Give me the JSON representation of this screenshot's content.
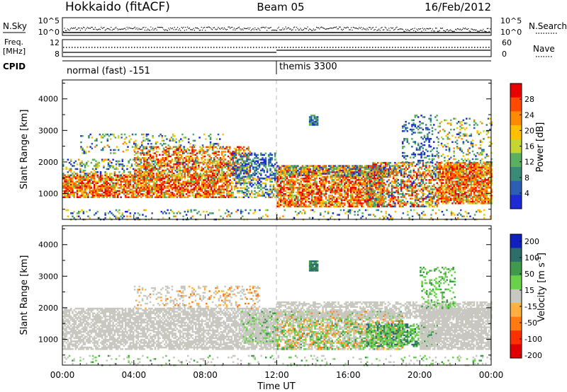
{
  "header": {
    "title": "Hokkaido (fitACF)",
    "beam": "Beam 05",
    "date": "16/Feb/2012"
  },
  "top_panel": {
    "nsky_label": "N.Sky",
    "nsearch_label": "N.Search",
    "nsky_ticks": [
      "10^5",
      "10^0"
    ],
    "nsky_right_ticks": [
      "10^5",
      "10^0"
    ],
    "freq_label_1": "Freq.",
    "freq_label_2": "[MHz]",
    "freq_ticks": [
      "12",
      "8"
    ],
    "nave_label": "Nave",
    "nave_ticks": [
      "60",
      "0"
    ],
    "cpid_label": "CPID",
    "cpid_segments": [
      "normal (fast) -151",
      "themis 3300"
    ]
  },
  "chart_data": [
    {
      "type": "heatmap",
      "title": "",
      "xlabel": "",
      "ylabel": "Slant Range [km]",
      "colorbar_label": "Power [dB]",
      "x_range": [
        "00:00",
        "24:00"
      ],
      "ylim": [
        180,
        4600
      ],
      "yticks": [
        1000,
        2000,
        3000,
        4000
      ],
      "colorbar_ticks": [
        4,
        8,
        12,
        16,
        20,
        24,
        28
      ],
      "colorbar_range": [
        0,
        32
      ],
      "colorscale": [
        "#1d2bd6",
        "#2c5fb2",
        "#3a8a78",
        "#58b060",
        "#c7d530",
        "#ffc000",
        "#ff8a00",
        "#ff4a00",
        "#e80000"
      ]
    },
    {
      "type": "heatmap",
      "title": "",
      "xlabel": "Time UT",
      "ylabel": "Slant Range [km]",
      "colorbar_label": "Velocity [m s^-1]",
      "x_range": [
        "00:00",
        "24:00"
      ],
      "xticks": [
        "00:00",
        "04:00",
        "08:00",
        "12:00",
        "16:00",
        "20:00",
        "00:00"
      ],
      "ylim": [
        180,
        4600
      ],
      "yticks": [
        1000,
        2000,
        3000,
        4000
      ],
      "colorbar_ticks": [
        200,
        100,
        50,
        15,
        -15,
        -50,
        -100,
        -200
      ],
      "colorscale": [
        "#1020c0",
        "#2e6e6a",
        "#3f9a4c",
        "#6ad24a",
        "#c8c8c0",
        "#ffb040",
        "#ff7a10",
        "#ff3000",
        "#e00000"
      ]
    }
  ]
}
